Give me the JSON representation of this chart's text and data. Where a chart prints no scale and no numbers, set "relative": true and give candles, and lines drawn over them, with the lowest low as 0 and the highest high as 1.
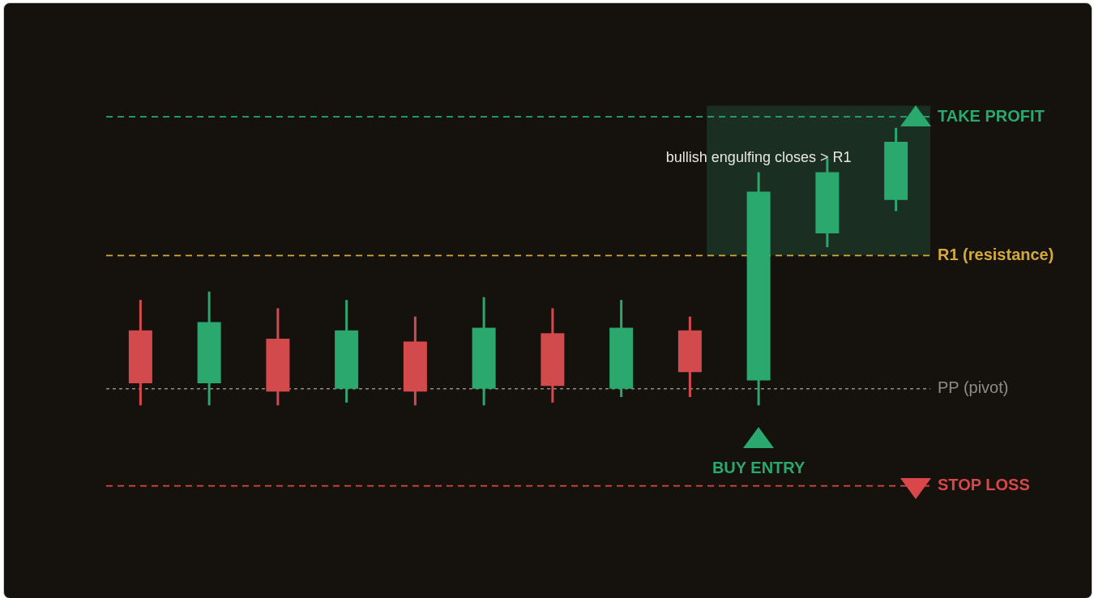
{
  "chart_data": {
    "type": "candlestick",
    "relative": true,
    "categories": [
      null,
      null,
      null,
      null,
      null,
      null,
      null,
      null,
      null,
      null,
      null,
      null
    ],
    "ohlc": [
      [
        0.27,
        0.38,
        0,
        0.08
      ],
      [
        0.08,
        0.41,
        0,
        0.3
      ],
      [
        0.24,
        0.35,
        0,
        0.05
      ],
      [
        0.06,
        0.38,
        0.01,
        0.27
      ],
      [
        0.23,
        0.32,
        0,
        0.05
      ],
      [
        0.06,
        0.39,
        0,
        0.28
      ],
      [
        0.26,
        0.35,
        0.01,
        0.07
      ],
      [
        0.06,
        0.38,
        0.03,
        0.28
      ],
      [
        0.27,
        0.32,
        0.03,
        0.12
      ],
      [
        0.09,
        0.84,
        0,
        0.77
      ],
      [
        0.62,
        0.89,
        0.57,
        0.84
      ],
      [
        0.74,
        1,
        0.7,
        0.95
      ]
    ],
    "colors": [
      "#d34a4c",
      "#2aa86e",
      "#d34a4c",
      "#2aa86e",
      "#d34a4c",
      "#2aa86e",
      "#d34a4c",
      "#2aa86e",
      "#d34a4c",
      "#2aa86e",
      "#2aa86e",
      "#2aa86e"
    ],
    "ref_lines": [
      {
        "axis": "y",
        "value": 1.04,
        "label": "TAKE PROFIT",
        "color": "#2aa86e",
        "line_style": "dashed"
      },
      {
        "axis": "y",
        "value": 0.54,
        "label": "R1 (resistance)",
        "color": "#d4a93a",
        "line_style": "dashed"
      },
      {
        "axis": "y",
        "value": 0.06,
        "label": "PP (pivot)",
        "color": "#8f8c84",
        "line_style": "dotted"
      },
      {
        "axis": "y",
        "value": -0.29,
        "label": "STOP LOSS",
        "color": "#d9474b",
        "line_style": "dashed"
      }
    ],
    "bands": [
      {
        "axis": "y",
        "from": 0.54,
        "to": 1.08,
        "color": "#1b2e22"
      }
    ],
    "annotations": [
      "bullish engulfing closes > R1",
      "BUY ENTRY"
    ],
    "legend": false
  }
}
